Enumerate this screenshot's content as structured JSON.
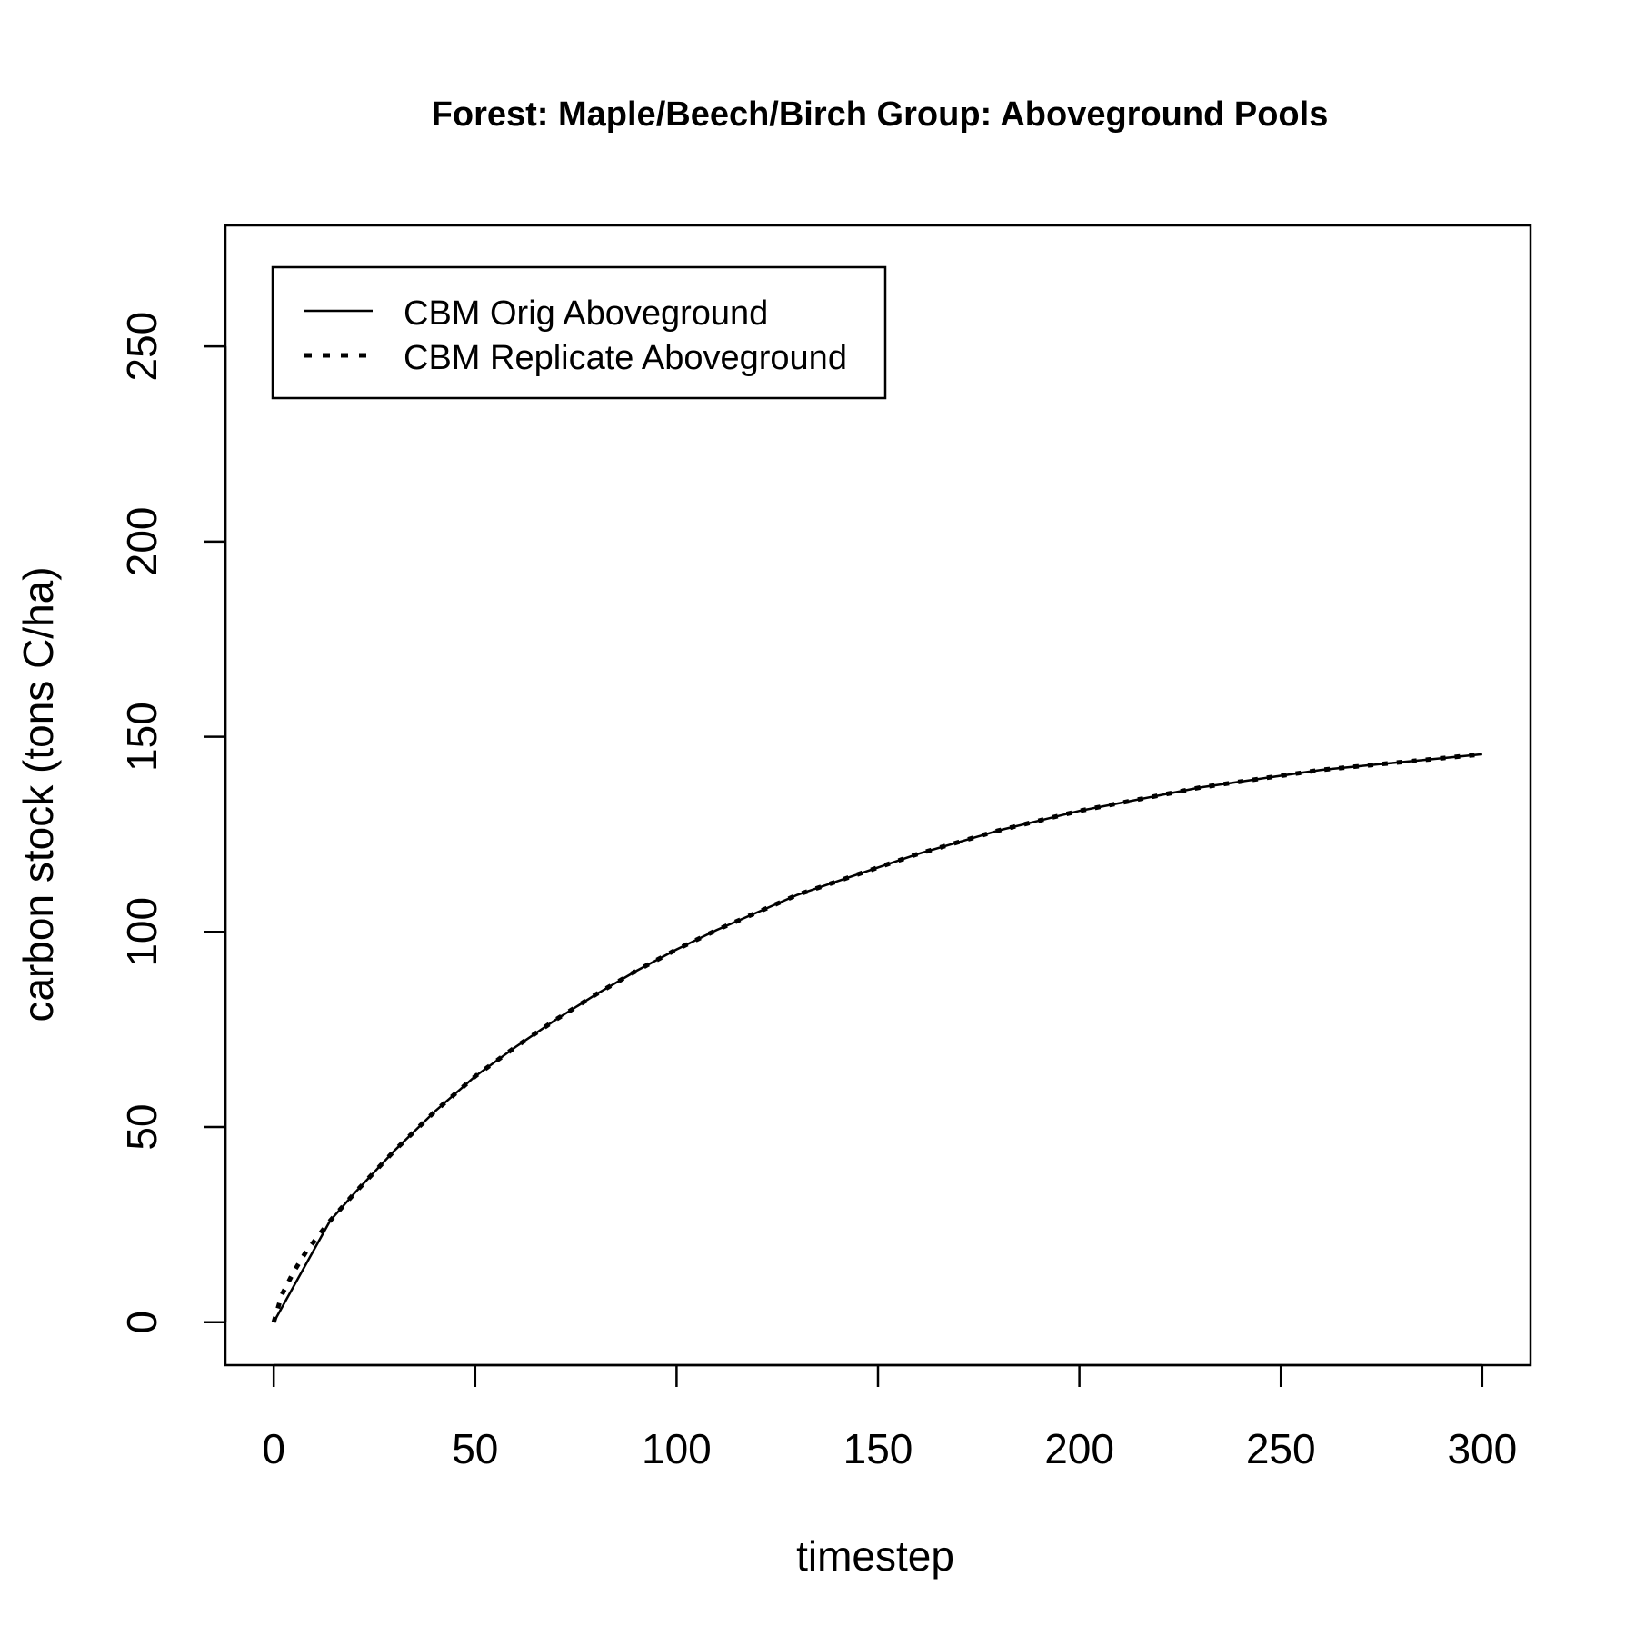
{
  "chart_data": {
    "type": "line",
    "title": "Forest: Maple/Beech/Birch Group: Aboveground Pools",
    "xlabel": "timestep",
    "ylabel": "carbon stock (tons C/ha)",
    "xlim": [
      -12,
      312
    ],
    "ylim": [
      -11,
      281
    ],
    "x_ticks": [
      0,
      50,
      100,
      150,
      200,
      250,
      300
    ],
    "y_ticks": [
      0,
      50,
      100,
      150,
      200,
      250
    ],
    "grid": false,
    "legend_position": "top-left",
    "series": [
      {
        "name": "CBM Orig Aboveground",
        "line_style": "solid",
        "color": "#000000",
        "x": [
          0,
          14,
          20,
          30,
          40,
          50,
          60,
          70,
          80,
          90,
          100,
          110,
          120,
          130,
          140,
          150,
          160,
          170,
          180,
          190,
          200,
          210,
          220,
          230,
          240,
          250,
          260,
          270,
          280,
          290,
          300
        ],
        "y": [
          0,
          26,
          33,
          44,
          54,
          63,
          70.5,
          77.5,
          84,
          90,
          95.5,
          100.5,
          105,
          109.5,
          113,
          116.5,
          120,
          123,
          126,
          128.5,
          131,
          133,
          135,
          137,
          138.5,
          140,
          141.5,
          142.5,
          143.5,
          144.5,
          145.5
        ]
      },
      {
        "name": "CBM Replicate Aboveground",
        "line_style": "dotted",
        "color": "#000000",
        "x": [
          0,
          2,
          5,
          8,
          11,
          14,
          20,
          30,
          40,
          50,
          60,
          70,
          80,
          90,
          100,
          110,
          120,
          130,
          140,
          150,
          160,
          170,
          180,
          190,
          200,
          210,
          220,
          230,
          240,
          250,
          260,
          270,
          280,
          290,
          300
        ],
        "y": [
          0,
          7,
          13,
          18,
          22,
          26,
          33,
          44,
          54,
          63,
          70.5,
          77.5,
          84,
          90,
          95.5,
          100.5,
          105,
          109.5,
          113,
          116.5,
          120,
          123,
          126,
          128.5,
          131,
          133,
          135,
          137,
          138.5,
          140,
          141.5,
          142.5,
          143.5,
          144.5,
          145.5
        ]
      }
    ]
  }
}
